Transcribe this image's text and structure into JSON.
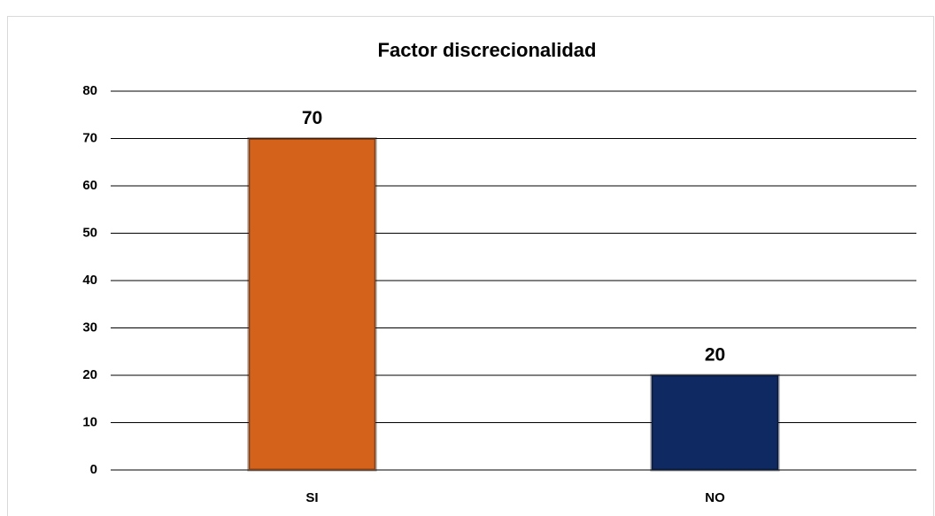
{
  "chart_data": {
    "type": "bar",
    "title": "Factor discrecionalidad",
    "categories": [
      "SI",
      "NO"
    ],
    "values": [
      70,
      20
    ],
    "colors": [
      "#d5621a",
      "#0f2a62"
    ],
    "ylim": [
      0,
      80
    ],
    "yticks": [
      0,
      10,
      20,
      30,
      40,
      50,
      60,
      70,
      80
    ],
    "grid": true
  }
}
